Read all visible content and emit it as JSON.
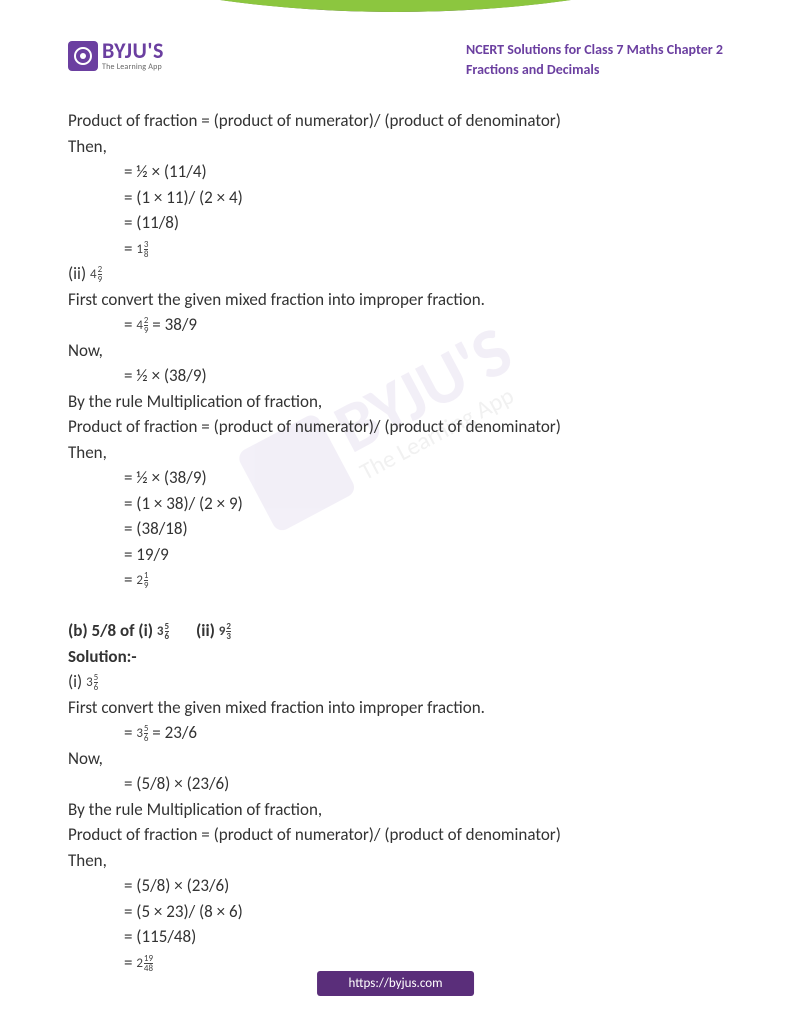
{
  "brand": {
    "name": "BYJU'S",
    "tagline": "The Learning App"
  },
  "doc": {
    "title_line1": "NCERT Solutions for Class 7 Maths Chapter 2",
    "title_line2": "Fractions and Decimals"
  },
  "lines": {
    "l01": "Product of fraction = (product of numerator)/ (product of denominator)",
    "l02": "Then,",
    "l03": "= ½ × (11/4)",
    "l04": "= (1 × 11)/ (2 × 4)",
    "l05": "= (11/8)",
    "l06": "= ",
    "mf1": {
      "whole": "1",
      "num": "3",
      "den": "8"
    },
    "l07": "(ii) ",
    "mf2": {
      "whole": "4",
      "num": "2",
      "den": "9"
    },
    "l08": "First convert the given mixed fraction into improper fraction.",
    "l09": "= ",
    "mf3": {
      "whole": "4",
      "num": "2",
      "den": "9"
    },
    "l09b": " = 38/9",
    "l10": "Now,",
    "l11": "= ½ × (38/9)",
    "l12": "By the rule Multiplication of fraction,",
    "l13": "Product of fraction = (product of numerator)/ (product of denominator)",
    "l14": "Then,",
    "l15": "= ½ × (38/9)",
    "l16": "= (1 × 38)/ (2 × 9)",
    "l17": "= (38/18)",
    "l18": "= 19/9",
    "l19": "= ",
    "mf4": {
      "whole": "2",
      "num": "1",
      "den": "9"
    },
    "l20a": "(b) 5/8 of (i) ",
    "mf5": {
      "whole": "3",
      "num": "5",
      "den": "6"
    },
    "l20b": "       (ii) ",
    "mf6": {
      "whole": "9",
      "num": "2",
      "den": "3"
    },
    "l21": "Solution:-",
    "l22": "(i) ",
    "mf7": {
      "whole": "3",
      "num": "5",
      "den": "6"
    },
    "l23": "First convert the given mixed fraction into improper fraction.",
    "l24": "= ",
    "mf8": {
      "whole": "3",
      "num": "5",
      "den": "6"
    },
    "l24b": " = 23/6",
    "l25": "Now,",
    "l26": "= (5/8) × (23/6)",
    "l27": "By the rule Multiplication of fraction,",
    "l28": "Product of fraction = (product of numerator)/ (product of denominator)",
    "l29": "Then,",
    "l30": "= (5/8) × (23/6)",
    "l31": "= (5 × 23)/ (8 × 6)",
    "l32": "= (115/48)",
    "l33": "= ",
    "mf9": {
      "whole": "2",
      "num": "19",
      "den": "48"
    }
  },
  "footer": {
    "url": "https://byjus.com"
  },
  "colors": {
    "brand_purple": "#6b3fa0",
    "dark_purple": "#5a2e7a",
    "accent_green": "#8cc63f",
    "text": "#333333"
  }
}
